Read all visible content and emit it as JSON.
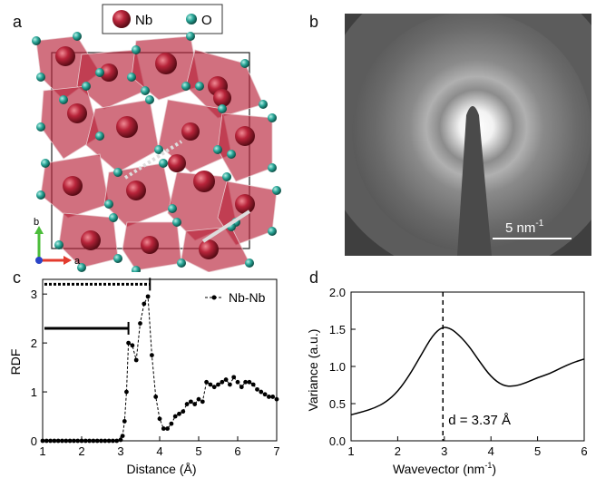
{
  "panels": {
    "a": {
      "letter": "a",
      "legend": [
        {
          "label": "Nb",
          "color": "#a31a2a"
        },
        {
          "label": "O",
          "color": "#2aa698"
        }
      ],
      "axis_b": "b",
      "axis_a": "a"
    },
    "b": {
      "letter": "b",
      "scalebar_label": "5 nm",
      "scalebar_exp": "-1"
    },
    "c": {
      "letter": "c"
    },
    "d": {
      "letter": "d"
    }
  },
  "chart_data": [
    {
      "type": "line",
      "panel": "c",
      "xlabel": "Distance (Å)",
      "ylabel": "RDF",
      "xlim": [
        1,
        7
      ],
      "ylim": [
        0,
        3.3
      ],
      "xticks": [
        "1",
        "2",
        "3",
        "4",
        "5",
        "6",
        "7"
      ],
      "yticks": [
        "0",
        "1",
        "2",
        "3"
      ],
      "series": [
        {
          "name": "Nb-Nb",
          "x": [
            1.0,
            1.1,
            1.2,
            1.3,
            1.4,
            1.5,
            1.6,
            1.7,
            1.8,
            1.9,
            2.0,
            2.1,
            2.2,
            2.3,
            2.4,
            2.5,
            2.6,
            2.7,
            2.8,
            2.9,
            3.0,
            3.05,
            3.1,
            3.15,
            3.2,
            3.3,
            3.4,
            3.5,
            3.6,
            3.7,
            3.8,
            3.9,
            4.0,
            4.1,
            4.2,
            4.3,
            4.4,
            4.5,
            4.6,
            4.7,
            4.8,
            4.9,
            5.0,
            5.1,
            5.2,
            5.3,
            5.4,
            5.5,
            5.6,
            5.7,
            5.8,
            5.9,
            6.0,
            6.1,
            6.2,
            6.3,
            6.4,
            6.5,
            6.6,
            6.7,
            6.8,
            6.9,
            7.0
          ],
          "y": [
            0,
            0,
            0,
            0,
            0,
            0,
            0,
            0,
            0,
            0,
            0,
            0,
            0,
            0,
            0,
            0,
            0,
            0,
            0,
            0,
            0.02,
            0.1,
            0.4,
            1.0,
            2.0,
            1.95,
            1.65,
            2.4,
            2.8,
            2.95,
            1.75,
            0.9,
            0.45,
            0.25,
            0.25,
            0.35,
            0.5,
            0.55,
            0.6,
            0.75,
            0.8,
            0.75,
            0.85,
            0.8,
            1.2,
            1.15,
            1.1,
            1.15,
            1.2,
            1.25,
            1.15,
            1.3,
            1.2,
            1.1,
            1.2,
            1.2,
            1.15,
            1.05,
            1.0,
            0.95,
            0.9,
            0.9,
            0.85
          ]
        }
      ],
      "bars": [
        {
          "style": "solid",
          "y": 2.3,
          "x_end": 3.2
        },
        {
          "style": "dotted",
          "y": 3.2,
          "x_end": 3.75
        }
      ]
    },
    {
      "type": "line",
      "panel": "d",
      "xlabel": "Wavevector (nm",
      "xlabel_exp": "-1",
      "xlabel_end": ")",
      "ylabel": "Variance (a.u.)",
      "xlim": [
        1,
        6
      ],
      "ylim": [
        0,
        2.0
      ],
      "xticks": [
        "1",
        "2",
        "3",
        "4",
        "5",
        "6"
      ],
      "yticks": [
        "0.0",
        "0.5",
        "1.0",
        "1.5",
        "2.0"
      ],
      "series": [
        {
          "x": [
            1.0,
            1.25,
            1.5,
            1.75,
            2.0,
            2.25,
            2.5,
            2.75,
            2.95,
            3.1,
            3.25,
            3.5,
            3.75,
            4.0,
            4.25,
            4.5,
            4.75,
            5.0,
            5.25,
            5.5,
            5.75,
            6.0
          ],
          "y": [
            0.35,
            0.39,
            0.44,
            0.52,
            0.66,
            0.88,
            1.15,
            1.42,
            1.53,
            1.52,
            1.46,
            1.3,
            1.07,
            0.86,
            0.74,
            0.73,
            0.78,
            0.85,
            0.9,
            0.98,
            1.05,
            1.1
          ]
        }
      ],
      "vline": {
        "x": 2.97,
        "label": "d = 3.37 Å"
      }
    }
  ]
}
